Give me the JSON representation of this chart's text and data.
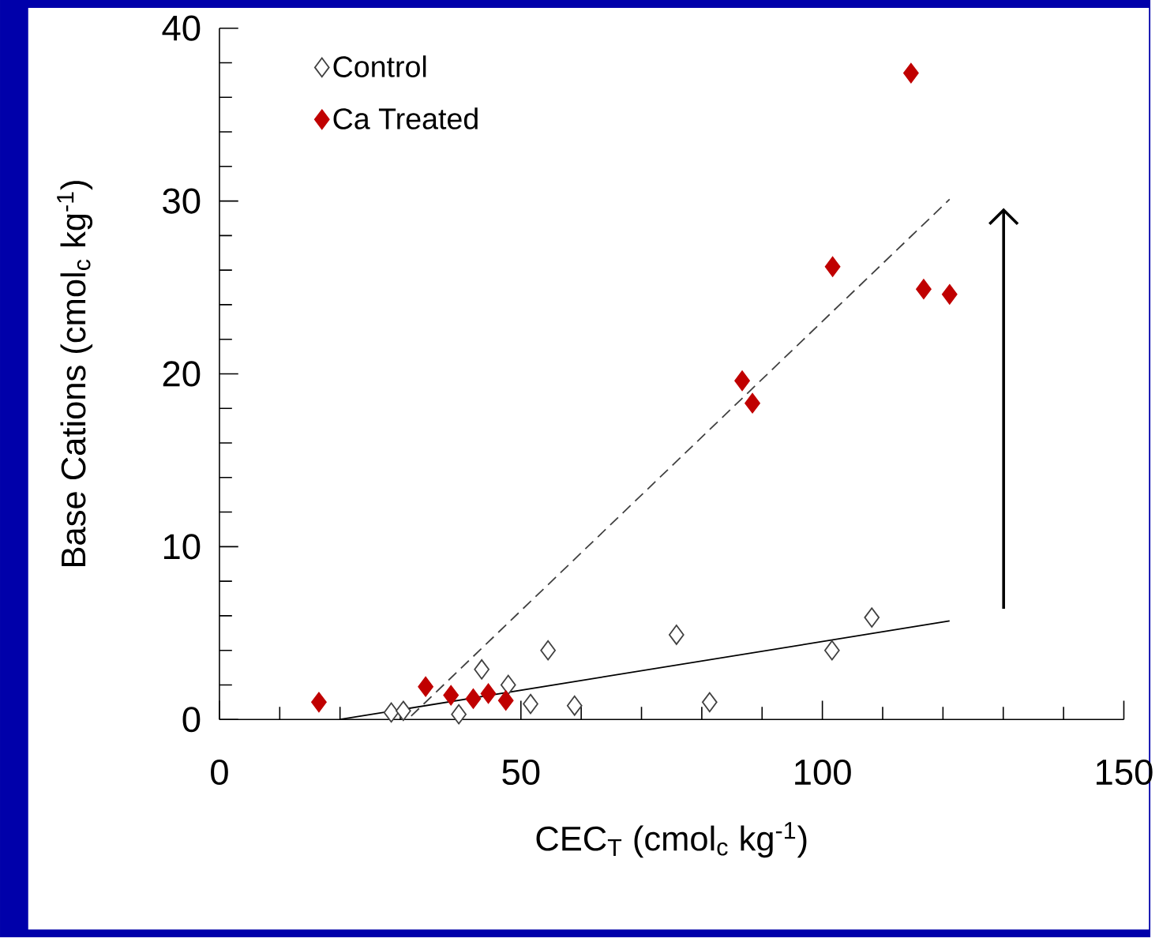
{
  "chart_data": {
    "type": "scatter",
    "xlabel": "CEC$_{T}$ (cmol$_{c}$ kg$^{-1}$)",
    "ylabel": "Base Cations (cmol$_{c}$ kg$^{-1}$)",
    "xlim": [
      0,
      150
    ],
    "ylim": [
      0,
      40
    ],
    "xticks": [
      0,
      50,
      100,
      150
    ],
    "yticks": [
      0,
      10,
      20,
      30,
      40
    ],
    "grid": false,
    "legend": "top left",
    "series": [
      {
        "name": "Control",
        "color": "#404040",
        "marker": "diamond",
        "x": [
          28.5,
          30.5,
          39.7,
          43.5,
          47.9,
          51.6,
          54.5,
          58.9,
          75.8,
          81.3,
          101.6,
          108.2
        ],
        "values": [
          0.4,
          0.5,
          0.3,
          2.9,
          2.0,
          0.9,
          4.0,
          0.8,
          4.9,
          1.0,
          4.0,
          5.9
        ]
      },
      {
        "name": "Ca Treated",
        "color": "#c00000",
        "marker": "diamond",
        "x": [
          16.5,
          34.2,
          38.4,
          42.1,
          44.6,
          47.5,
          86.7,
          88.4,
          101.7,
          114.7,
          116.8,
          121.1
        ],
        "values": [
          1.0,
          1.9,
          1.4,
          1.2,
          1.5,
          1.1,
          19.6,
          18.3,
          26.2,
          37.4,
          24.9,
          24.6
        ]
      },
      {
        "type": "line",
        "color": "#000000",
        "line_style": "solid",
        "x": [
          20,
          121.1
        ],
        "values": [
          0,
          5.7
        ]
      },
      {
        "type": "line",
        "color": "#404040",
        "line_style": "dashed",
        "x": [
          31.8,
          121.1
        ],
        "values": [
          0.2,
          30.1
        ]
      }
    ]
  }
}
